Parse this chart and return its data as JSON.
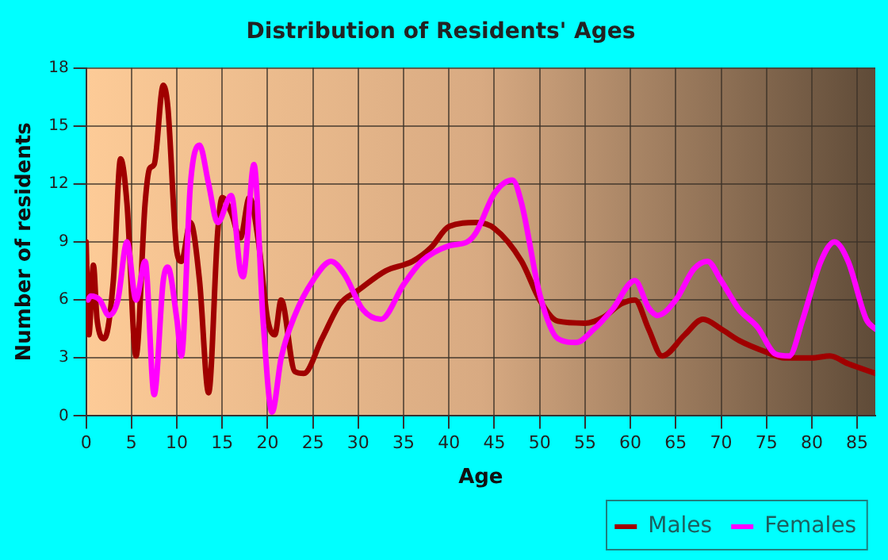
{
  "chart_data": {
    "type": "line",
    "title": "Distribution of Residents' Ages",
    "xlabel": "Age",
    "ylabel": "Number of residents",
    "xlim": [
      0,
      87
    ],
    "xticks": [
      0,
      5,
      10,
      15,
      20,
      25,
      30,
      35,
      40,
      45,
      50,
      55,
      60,
      65,
      70,
      75,
      80,
      85
    ],
    "ylim": [
      0,
      18
    ],
    "yticks": [
      0,
      3,
      6,
      9,
      12,
      15,
      18
    ],
    "grid": true,
    "legend": "bottom right",
    "marker": "none",
    "line_style": "solid",
    "series": [
      {
        "name": "Males",
        "color": "#a00000",
        "x": [
          0,
          0.3,
          0.8,
          1.2,
          2,
          3,
          3.8,
          4.5,
          5.5,
          6.5,
          7,
          7.5,
          8.5,
          9,
          10,
          10.5,
          11.5,
          12.5,
          13.5,
          14.5,
          15,
          16,
          17,
          18,
          19,
          20,
          20.8,
          21.5,
          23,
          24,
          26,
          28,
          30,
          33,
          36,
          38,
          40,
          43,
          45,
          48,
          50,
          52,
          55,
          57,
          59,
          60.5,
          62,
          63.5,
          66,
          68,
          70,
          72,
          75,
          77,
          80,
          82,
          84,
          87
        ],
        "values": [
          9,
          4.2,
          7.8,
          5,
          4,
          7,
          13.3,
          11,
          3.1,
          11,
          12.8,
          13,
          17.1,
          16,
          8.5,
          8,
          10,
          7,
          1.2,
          9.5,
          11.3,
          10.5,
          9.2,
          11.3,
          9,
          5,
          4.2,
          6,
          2.3,
          2.2,
          4,
          5.8,
          6.5,
          7.5,
          8,
          8.7,
          9.8,
          10,
          9.7,
          8,
          6,
          4.9,
          4.8,
          5.1,
          5.8,
          6,
          4.5,
          3.1,
          4.2,
          5,
          4.5,
          3.9,
          3.3,
          3,
          3,
          3.1,
          2.7,
          2.2
        ]
      },
      {
        "name": "Females",
        "color": "#ff00ff",
        "x": [
          0.2,
          0.5,
          1.5,
          2.5,
          3.5,
          4.5,
          5.5,
          6.5,
          7.5,
          8.5,
          9,
          10,
          10.5,
          11.5,
          12.5,
          13.5,
          14.5,
          16,
          17,
          17.3,
          18.5,
          19.5,
          20.5,
          21.5,
          23,
          25,
          27,
          28.5,
          30.5,
          32.5,
          35,
          37,
          40,
          42,
          43,
          45,
          47,
          48,
          50,
          52,
          54,
          56,
          58,
          60.5,
          62,
          63,
          65,
          67,
          68.5,
          70,
          72,
          74,
          76,
          77.5,
          79,
          81,
          82.5,
          84,
          86,
          87
        ],
        "values": [
          6,
          6.2,
          6,
          5.2,
          6,
          9,
          6,
          8,
          1.1,
          7,
          7.7,
          5,
          3.1,
          12,
          14,
          12,
          10,
          11.4,
          7.5,
          7.2,
          13,
          5,
          0.2,
          3,
          5.2,
          7,
          8,
          7.3,
          5.5,
          5,
          6.8,
          8,
          8.8,
          9,
          9.5,
          11.5,
          12.2,
          11,
          6.3,
          4,
          3.8,
          4.5,
          5.5,
          7,
          5.6,
          5.2,
          6,
          7.6,
          8,
          7,
          5.5,
          4.6,
          3.2,
          3.1,
          5,
          8,
          9,
          8,
          5,
          4.5
        ]
      }
    ]
  }
}
